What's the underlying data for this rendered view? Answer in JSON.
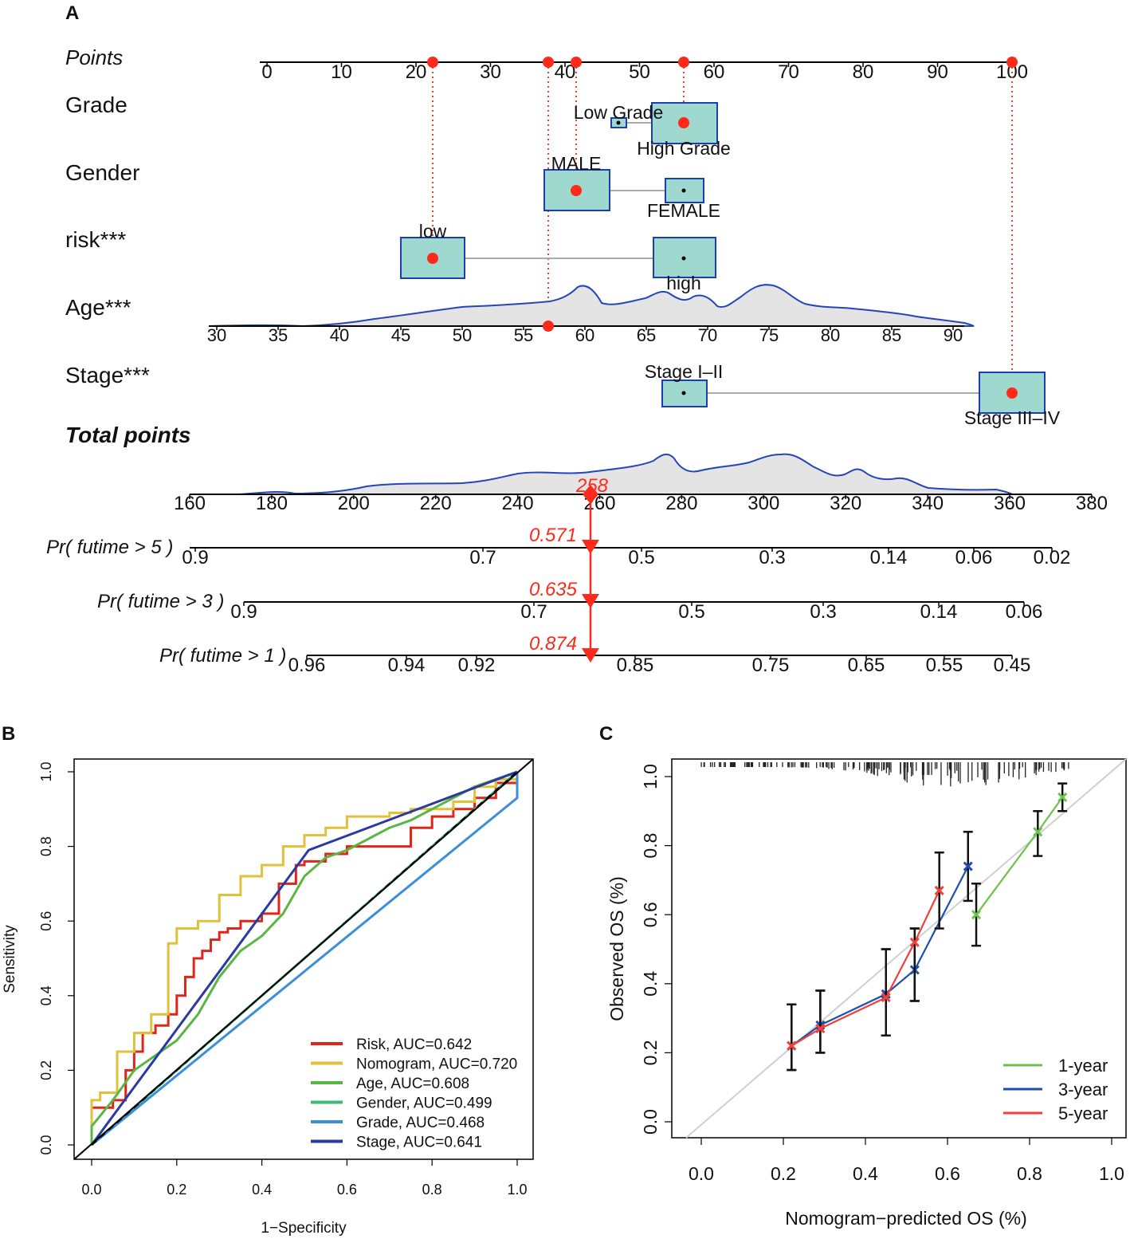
{
  "chart_data": [
    {
      "panel": "A",
      "type": "nomogram",
      "points_axis": {
        "label": "Points",
        "ticks": [
          0,
          10,
          20,
          30,
          40,
          50,
          60,
          70,
          80,
          90,
          100
        ]
      },
      "variables": [
        {
          "name": "Grade",
          "levels": [
            {
              "label": "Low Grade",
              "points": 47.5
            },
            {
              "label": "High Grade",
              "points": 56.5
            }
          ],
          "selected_points": 56.5
        },
        {
          "name": "Gender",
          "levels": [
            {
              "label": "MALE",
              "points": 41
            },
            {
              "label": "FEMALE",
              "points": 56.5
            }
          ],
          "selected_points": 41
        },
        {
          "name": "risk***",
          "levels": [
            {
              "label": "low",
              "points": 22
            },
            {
              "label": "high",
              "points": 56.5
            }
          ],
          "selected_points": 22
        },
        {
          "name": "Age***",
          "axis_ticks": [
            30,
            35,
            40,
            45,
            50,
            55,
            60,
            65,
            70,
            75,
            80,
            85,
            90
          ],
          "selected_value": 57,
          "selected_points": 37.5
        },
        {
          "name": "Stage***",
          "levels": [
            {
              "label": "Stage I–II",
              "points": 56.5
            },
            {
              "label": "Stage III–IV",
              "points": 100
            }
          ],
          "selected_points": 100
        }
      ],
      "total_points": {
        "label": "Total points",
        "ticks": [
          160,
          180,
          200,
          220,
          240,
          260,
          280,
          300,
          320,
          340,
          360,
          380
        ],
        "selected": 258,
        "selected_label": "258"
      },
      "probabilities": [
        {
          "label": "Pr( futime > 5 )",
          "ticks": [
            "0.9",
            "0.7",
            "0.5",
            "0.3",
            "0.14",
            "0.06",
            "0.02"
          ],
          "value_label": "0.571"
        },
        {
          "label": "Pr( futime > 3 )",
          "ticks": [
            "0.9",
            "0.7",
            "0.5",
            "0.3",
            "0.14",
            "0.06"
          ],
          "value_label": "0.635"
        },
        {
          "label": "Pr( futime > 1 )",
          "ticks": [
            "0.96",
            "0.94",
            "0.92",
            "0.85",
            "0.75",
            "0.65",
            "0.55",
            "0.45"
          ],
          "value_label": "0.874"
        }
      ]
    },
    {
      "panel": "B",
      "type": "line",
      "xlabel": "1−Specificity",
      "ylabel": "Sensitivity",
      "xticks": [
        "0.0",
        "0.2",
        "0.4",
        "0.6",
        "0.8",
        "1.0"
      ],
      "yticks": [
        "0.0",
        "0.2",
        "0.4",
        "0.6",
        "0.8",
        "1.0"
      ],
      "xlim": [
        0,
        1
      ],
      "ylim": [
        0,
        1
      ],
      "series": [
        {
          "name": "Risk, AUC=0.642",
          "color": "#e0251b",
          "x": [
            0,
            0,
            0.05,
            0.08,
            0.1,
            0.12,
            0.15,
            0.18,
            0.2,
            0.22,
            0.24,
            0.26,
            0.28,
            0.3,
            0.32,
            0.35,
            0.4,
            0.44,
            0.48,
            0.5,
            0.55,
            0.6,
            0.65,
            0.7,
            0.75,
            0.8,
            0.85,
            0.9,
            0.95,
            1
          ],
          "y": [
            0,
            0.1,
            0.12,
            0.2,
            0.25,
            0.3,
            0.32,
            0.35,
            0.4,
            0.45,
            0.5,
            0.52,
            0.55,
            0.57,
            0.58,
            0.6,
            0.62,
            0.7,
            0.75,
            0.76,
            0.78,
            0.8,
            0.8,
            0.8,
            0.85,
            0.88,
            0.9,
            0.93,
            0.97,
            1
          ]
        },
        {
          "name": "Nomogram, AUC=0.720",
          "color": "#e0c13a",
          "x": [
            0,
            0,
            0.02,
            0.06,
            0.1,
            0.14,
            0.18,
            0.2,
            0.25,
            0.3,
            0.35,
            0.4,
            0.45,
            0.5,
            0.55,
            0.6,
            0.65,
            0.7,
            0.75,
            0.8,
            0.85,
            0.9,
            0.95,
            1
          ],
          "y": [
            0,
            0.12,
            0.14,
            0.25,
            0.3,
            0.35,
            0.54,
            0.58,
            0.6,
            0.67,
            0.72,
            0.75,
            0.8,
            0.83,
            0.85,
            0.88,
            0.88,
            0.89,
            0.9,
            0.9,
            0.92,
            0.96,
            0.98,
            1
          ]
        },
        {
          "name": "Age, AUC=0.608",
          "color": "#5ab642",
          "x": [
            0,
            0,
            0.05,
            0.1,
            0.15,
            0.2,
            0.25,
            0.3,
            0.35,
            0.4,
            0.45,
            0.5,
            0.55,
            0.6,
            0.65,
            0.7,
            0.75,
            0.8,
            0.85,
            0.9,
            0.95,
            1
          ],
          "y": [
            0,
            0.05,
            0.12,
            0.2,
            0.24,
            0.28,
            0.35,
            0.45,
            0.52,
            0.56,
            0.62,
            0.72,
            0.77,
            0.79,
            0.82,
            0.85,
            0.87,
            0.9,
            0.93,
            0.96,
            0.98,
            1
          ]
        },
        {
          "name": "Gender, AUC=0.499",
          "color": "#3fba74",
          "x": [
            0,
            1
          ],
          "y": [
            0,
            1
          ]
        },
        {
          "name": "Grade, AUC=0.468",
          "color": "#3a8fd8",
          "x": [
            0,
            1,
            1
          ],
          "y": [
            0,
            0.93,
            1
          ]
        },
        {
          "name": "Stage, AUC=0.641",
          "color": "#2b3aa3",
          "x": [
            0,
            0.51,
            1
          ],
          "y": [
            0,
            0.79,
            1
          ]
        }
      ],
      "reference_line": {
        "x": [
          0,
          1
        ],
        "y": [
          0,
          1
        ],
        "style": "dashed black"
      }
    },
    {
      "panel": "C",
      "type": "line",
      "xlabel": "Nomogram−predicted OS (%)",
      "ylabel": "Observed OS (%)",
      "xticks": [
        "0.0",
        "0.2",
        "0.4",
        "0.6",
        "0.8",
        "1.0"
      ],
      "yticks": [
        "0.0",
        "0.2",
        "0.4",
        "0.6",
        "0.8",
        "1.0"
      ],
      "xlim": [
        0,
        1
      ],
      "ylim": [
        0,
        1
      ],
      "series": [
        {
          "name": "1-year",
          "color": "#6cc24a",
          "x": [
            0.67,
            0.82,
            0.88
          ],
          "y": [
            0.6,
            0.84,
            0.94
          ],
          "err_low": [
            0.51,
            0.77,
            0.9
          ],
          "err_high": [
            0.69,
            0.9,
            0.98
          ]
        },
        {
          "name": "3-year",
          "color": "#1f4fae",
          "x": [
            0.22,
            0.29,
            0.45,
            0.52,
            0.65
          ],
          "y": [
            0.22,
            0.28,
            0.37,
            0.44,
            0.74
          ],
          "err_low": [
            0.15,
            0.2,
            0.25,
            0.35,
            0.64
          ],
          "err_high": [
            0.34,
            0.38,
            0.5,
            0.56,
            0.84
          ]
        },
        {
          "name": "5-year",
          "color": "#f0403a",
          "x": [
            0.22,
            0.29,
            0.45,
            0.52,
            0.58
          ],
          "y": [
            0.22,
            0.27,
            0.36,
            0.52,
            0.67
          ],
          "err_low": [
            0.15,
            0.2,
            0.25,
            0.35,
            0.56
          ],
          "err_high": [
            0.34,
            0.38,
            0.5,
            0.56,
            0.78
          ]
        }
      ],
      "reference_line": {
        "x": [
          0,
          1
        ],
        "y": [
          0,
          1
        ],
        "style": "gray"
      }
    }
  ],
  "panel_labels": {
    "a": "A",
    "b": "B",
    "c": "C"
  }
}
